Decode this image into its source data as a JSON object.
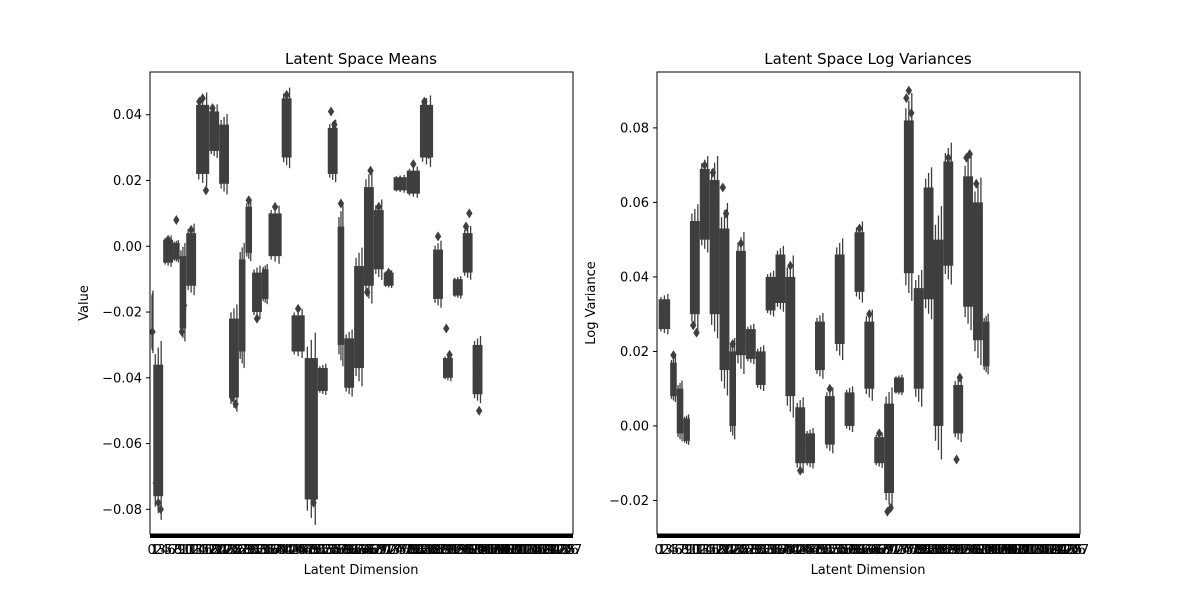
{
  "chart_data": [
    {
      "type": "box",
      "title": "Latent Space Means",
      "xlabel": "Latent Dimension",
      "ylabel": "Value",
      "ylim": [
        -0.0875,
        0.053
      ],
      "yticks": [
        -0.08,
        -0.06,
        -0.04,
        -0.02,
        0.0,
        0.02,
        0.04
      ],
      "ytick_labels": [
        "−0.08",
        "−0.06",
        "−0.04",
        "−0.02",
        "0.00",
        "0.02",
        "0.04"
      ],
      "dimensions": 128,
      "box_color": "#3f3f3f",
      "groups": [
        {
          "from": 0.5,
          "to": 1,
          "lo": -0.03,
          "hi": -0.016,
          "out": [
            -0.026
          ]
        },
        {
          "from": 1,
          "to": 4,
          "lo": -0.076,
          "hi": -0.036,
          "out": [
            -0.072,
            -0.078,
            -0.08
          ]
        },
        {
          "from": 4,
          "to": 7,
          "lo": -0.005,
          "hi": 0.002,
          "out": [
            0.002
          ]
        },
        {
          "from": 7,
          "to": 9,
          "lo": -0.004,
          "hi": 0.001,
          "out": [
            0.008
          ]
        },
        {
          "from": 9,
          "to": 11,
          "lo": -0.025,
          "hi": -0.003,
          "out": [
            -0.026,
            -0.018
          ]
        },
        {
          "from": 11,
          "to": 14,
          "lo": -0.012,
          "hi": 0.004,
          "out": [
            0.005
          ]
        },
        {
          "from": 14,
          "to": 18,
          "lo": 0.022,
          "hi": 0.043,
          "out": [
            0.044,
            0.045,
            0.017
          ]
        },
        {
          "from": 18,
          "to": 21,
          "lo": 0.029,
          "hi": 0.041,
          "out": [
            0.042,
            0.038
          ]
        },
        {
          "from": 21,
          "to": 24,
          "lo": 0.019,
          "hi": 0.037,
          "out": [
            0.035
          ]
        },
        {
          "from": 24,
          "to": 27,
          "lo": -0.046,
          "hi": -0.022,
          "out": [
            -0.046,
            -0.048
          ]
        },
        {
          "from": 27,
          "to": 29,
          "lo": -0.032,
          "hi": -0.004,
          "out": [
            -0.03
          ]
        },
        {
          "from": 29,
          "to": 31,
          "lo": -0.002,
          "hi": 0.012,
          "out": [
            0.014
          ]
        },
        {
          "from": 31,
          "to": 34,
          "lo": -0.02,
          "hi": -0.008,
          "out": [
            -0.022
          ]
        },
        {
          "from": 34,
          "to": 36,
          "lo": -0.016,
          "hi": -0.007,
          "out": [
            -0.014
          ]
        },
        {
          "from": 36,
          "to": 40,
          "lo": -0.003,
          "hi": 0.01,
          "out": [
            0.012
          ]
        },
        {
          "from": 40,
          "to": 43,
          "lo": 0.027,
          "hi": 0.045,
          "out": [
            0.046
          ]
        },
        {
          "from": 43,
          "to": 47,
          "lo": -0.032,
          "hi": -0.021,
          "out": [
            -0.019
          ]
        },
        {
          "from": 47,
          "to": 51,
          "lo": -0.077,
          "hi": -0.034,
          "out": [
            -0.072,
            -0.078
          ]
        },
        {
          "from": 51,
          "to": 54,
          "lo": -0.044,
          "hi": -0.037,
          "out": [
            -0.042
          ]
        },
        {
          "from": 54,
          "to": 57,
          "lo": 0.022,
          "hi": 0.036,
          "out": [
            0.041,
            0.037
          ]
        },
        {
          "from": 57,
          "to": 59,
          "lo": -0.03,
          "hi": 0.006,
          "out": [
            0.013
          ]
        },
        {
          "from": 59,
          "to": 62,
          "lo": -0.043,
          "hi": -0.028,
          "out": [
            -0.042
          ]
        },
        {
          "from": 62,
          "to": 65,
          "lo": -0.037,
          "hi": -0.006,
          "out": [
            -0.036
          ]
        },
        {
          "from": 65,
          "to": 68,
          "lo": -0.012,
          "hi": 0.018,
          "out": [
            -0.014,
            0.023
          ]
        },
        {
          "from": 68,
          "to": 71,
          "lo": -0.007,
          "hi": 0.011,
          "out": [
            0.012
          ]
        },
        {
          "from": 71,
          "to": 74,
          "lo": -0.012,
          "hi": -0.008,
          "out": [
            -0.008
          ]
        },
        {
          "from": 74,
          "to": 78,
          "lo": 0.017,
          "hi": 0.021,
          "out": [
            0.02
          ]
        },
        {
          "from": 78,
          "to": 82,
          "lo": 0.016,
          "hi": 0.023,
          "out": [
            0.025
          ]
        },
        {
          "from": 82,
          "to": 86,
          "lo": 0.027,
          "hi": 0.043,
          "out": [
            0.044,
            0.028
          ]
        },
        {
          "from": 86,
          "to": 89,
          "lo": -0.016,
          "hi": -0.001,
          "out": [
            0.003
          ]
        },
        {
          "from": 89,
          "to": 92,
          "lo": -0.04,
          "hi": -0.034,
          "out": [
            -0.025,
            -0.033
          ]
        },
        {
          "from": 92,
          "to": 95,
          "lo": -0.015,
          "hi": -0.01,
          "out": [
            -0.012
          ]
        },
        {
          "from": 95,
          "to": 98,
          "lo": -0.008,
          "hi": 0.004,
          "out": [
            0.006,
            0.01
          ]
        },
        {
          "from": 98,
          "to": 101,
          "lo": -0.045,
          "hi": -0.03,
          "out": [
            -0.038,
            -0.05
          ]
        }
      ]
    },
    {
      "type": "box",
      "title": "Latent Space Log Variances",
      "xlabel": "Latent Dimension",
      "ylabel": "Log Variance",
      "ylim": [
        -0.029,
        0.095
      ],
      "yticks": [
        -0.02,
        0.0,
        0.02,
        0.04,
        0.06,
        0.08
      ],
      "ytick_labels": [
        "−0.02",
        "0.00",
        "0.02",
        "0.04",
        "0.06",
        "0.08"
      ],
      "dimensions": 128,
      "box_color": "#3f3f3f",
      "groups": [
        {
          "from": 0.5,
          "to": 4,
          "lo": 0.026,
          "hi": 0.034,
          "out": [
            0.033
          ]
        },
        {
          "from": 4,
          "to": 6,
          "lo": 0.008,
          "hi": 0.017,
          "out": [
            0.019
          ]
        },
        {
          "from": 6,
          "to": 8,
          "lo": -0.002,
          "hi": 0.01,
          "out": [
            0.008
          ]
        },
        {
          "from": 8,
          "to": 10,
          "lo": -0.004,
          "hi": 0.002,
          "out": [
            -0.002
          ]
        },
        {
          "from": 10,
          "to": 13,
          "lo": 0.03,
          "hi": 0.055,
          "out": [
            0.027,
            0.025
          ]
        },
        {
          "from": 13,
          "to": 16,
          "lo": 0.05,
          "hi": 0.069,
          "out": [
            0.07
          ]
        },
        {
          "from": 16,
          "to": 19,
          "lo": 0.03,
          "hi": 0.066,
          "out": [
            0.068,
            0.06
          ]
        },
        {
          "from": 19,
          "to": 22,
          "lo": 0.015,
          "hi": 0.053,
          "out": [
            0.064,
            0.057
          ]
        },
        {
          "from": 22,
          "to": 24,
          "lo": 0.0,
          "hi": 0.02,
          "out": [
            0.022
          ]
        },
        {
          "from": 24,
          "to": 27,
          "lo": 0.019,
          "hi": 0.047,
          "out": [
            0.049
          ]
        },
        {
          "from": 27,
          "to": 30,
          "lo": 0.018,
          "hi": 0.026,
          "out": [
            0.021
          ]
        },
        {
          "from": 30,
          "to": 33,
          "lo": 0.011,
          "hi": 0.02,
          "out": [
            0.014
          ]
        },
        {
          "from": 33,
          "to": 36,
          "lo": 0.031,
          "hi": 0.04,
          "out": [
            0.034
          ]
        },
        {
          "from": 36,
          "to": 39,
          "lo": 0.033,
          "hi": 0.046,
          "out": [
            0.044
          ]
        },
        {
          "from": 39,
          "to": 42,
          "lo": 0.008,
          "hi": 0.04,
          "out": [
            0.043
          ]
        },
        {
          "from": 42,
          "to": 45,
          "lo": -0.01,
          "hi": 0.005,
          "out": [
            -0.012
          ]
        },
        {
          "from": 45,
          "to": 48,
          "lo": -0.01,
          "hi": -0.002,
          "out": [
            -0.007
          ]
        },
        {
          "from": 48,
          "to": 51,
          "lo": 0.015,
          "hi": 0.028,
          "out": [
            0.027
          ]
        },
        {
          "from": 51,
          "to": 54,
          "lo": -0.005,
          "hi": 0.008,
          "out": [
            0.01
          ]
        },
        {
          "from": 54,
          "to": 57,
          "lo": 0.022,
          "hi": 0.046,
          "out": [
            0.045
          ]
        },
        {
          "from": 57,
          "to": 60,
          "lo": 0.0,
          "hi": 0.009,
          "out": [
            0.006
          ]
        },
        {
          "from": 60,
          "to": 63,
          "lo": 0.036,
          "hi": 0.052,
          "out": [
            0.053
          ]
        },
        {
          "from": 63,
          "to": 66,
          "lo": 0.01,
          "hi": 0.028,
          "out": [
            0.03
          ]
        },
        {
          "from": 66,
          "to": 69,
          "lo": -0.01,
          "hi": -0.003,
          "out": [
            -0.002
          ]
        },
        {
          "from": 69,
          "to": 72,
          "lo": -0.018,
          "hi": 0.006,
          "out": [
            -0.023,
            -0.022
          ]
        },
        {
          "from": 72,
          "to": 75,
          "lo": 0.009,
          "hi": 0.013,
          "out": [
            0.012
          ]
        },
        {
          "from": 75,
          "to": 78,
          "lo": 0.041,
          "hi": 0.082,
          "out": [
            0.088,
            0.09,
            0.084
          ]
        },
        {
          "from": 78,
          "to": 81,
          "lo": 0.01,
          "hi": 0.037,
          "out": [
            0.035
          ]
        },
        {
          "from": 81,
          "to": 84,
          "lo": 0.034,
          "hi": 0.064,
          "out": [
            0.06
          ]
        },
        {
          "from": 84,
          "to": 87,
          "lo": 0.0,
          "hi": 0.05,
          "out": [
            0.047,
            0.048
          ]
        },
        {
          "from": 87,
          "to": 90,
          "lo": 0.043,
          "hi": 0.071,
          "out": [
            0.072
          ]
        },
        {
          "from": 90,
          "to": 93,
          "lo": -0.002,
          "hi": 0.011,
          "out": [
            -0.009,
            0.013
          ]
        },
        {
          "from": 93,
          "to": 96,
          "lo": 0.032,
          "hi": 0.067,
          "out": [
            0.072,
            0.073
          ]
        },
        {
          "from": 96,
          "to": 99,
          "lo": 0.023,
          "hi": 0.06,
          "out": [
            0.065,
            0.057
          ]
        },
        {
          "from": 99,
          "to": 101,
          "lo": 0.016,
          "hi": 0.028,
          "out": [
            0.02
          ]
        }
      ]
    }
  ]
}
